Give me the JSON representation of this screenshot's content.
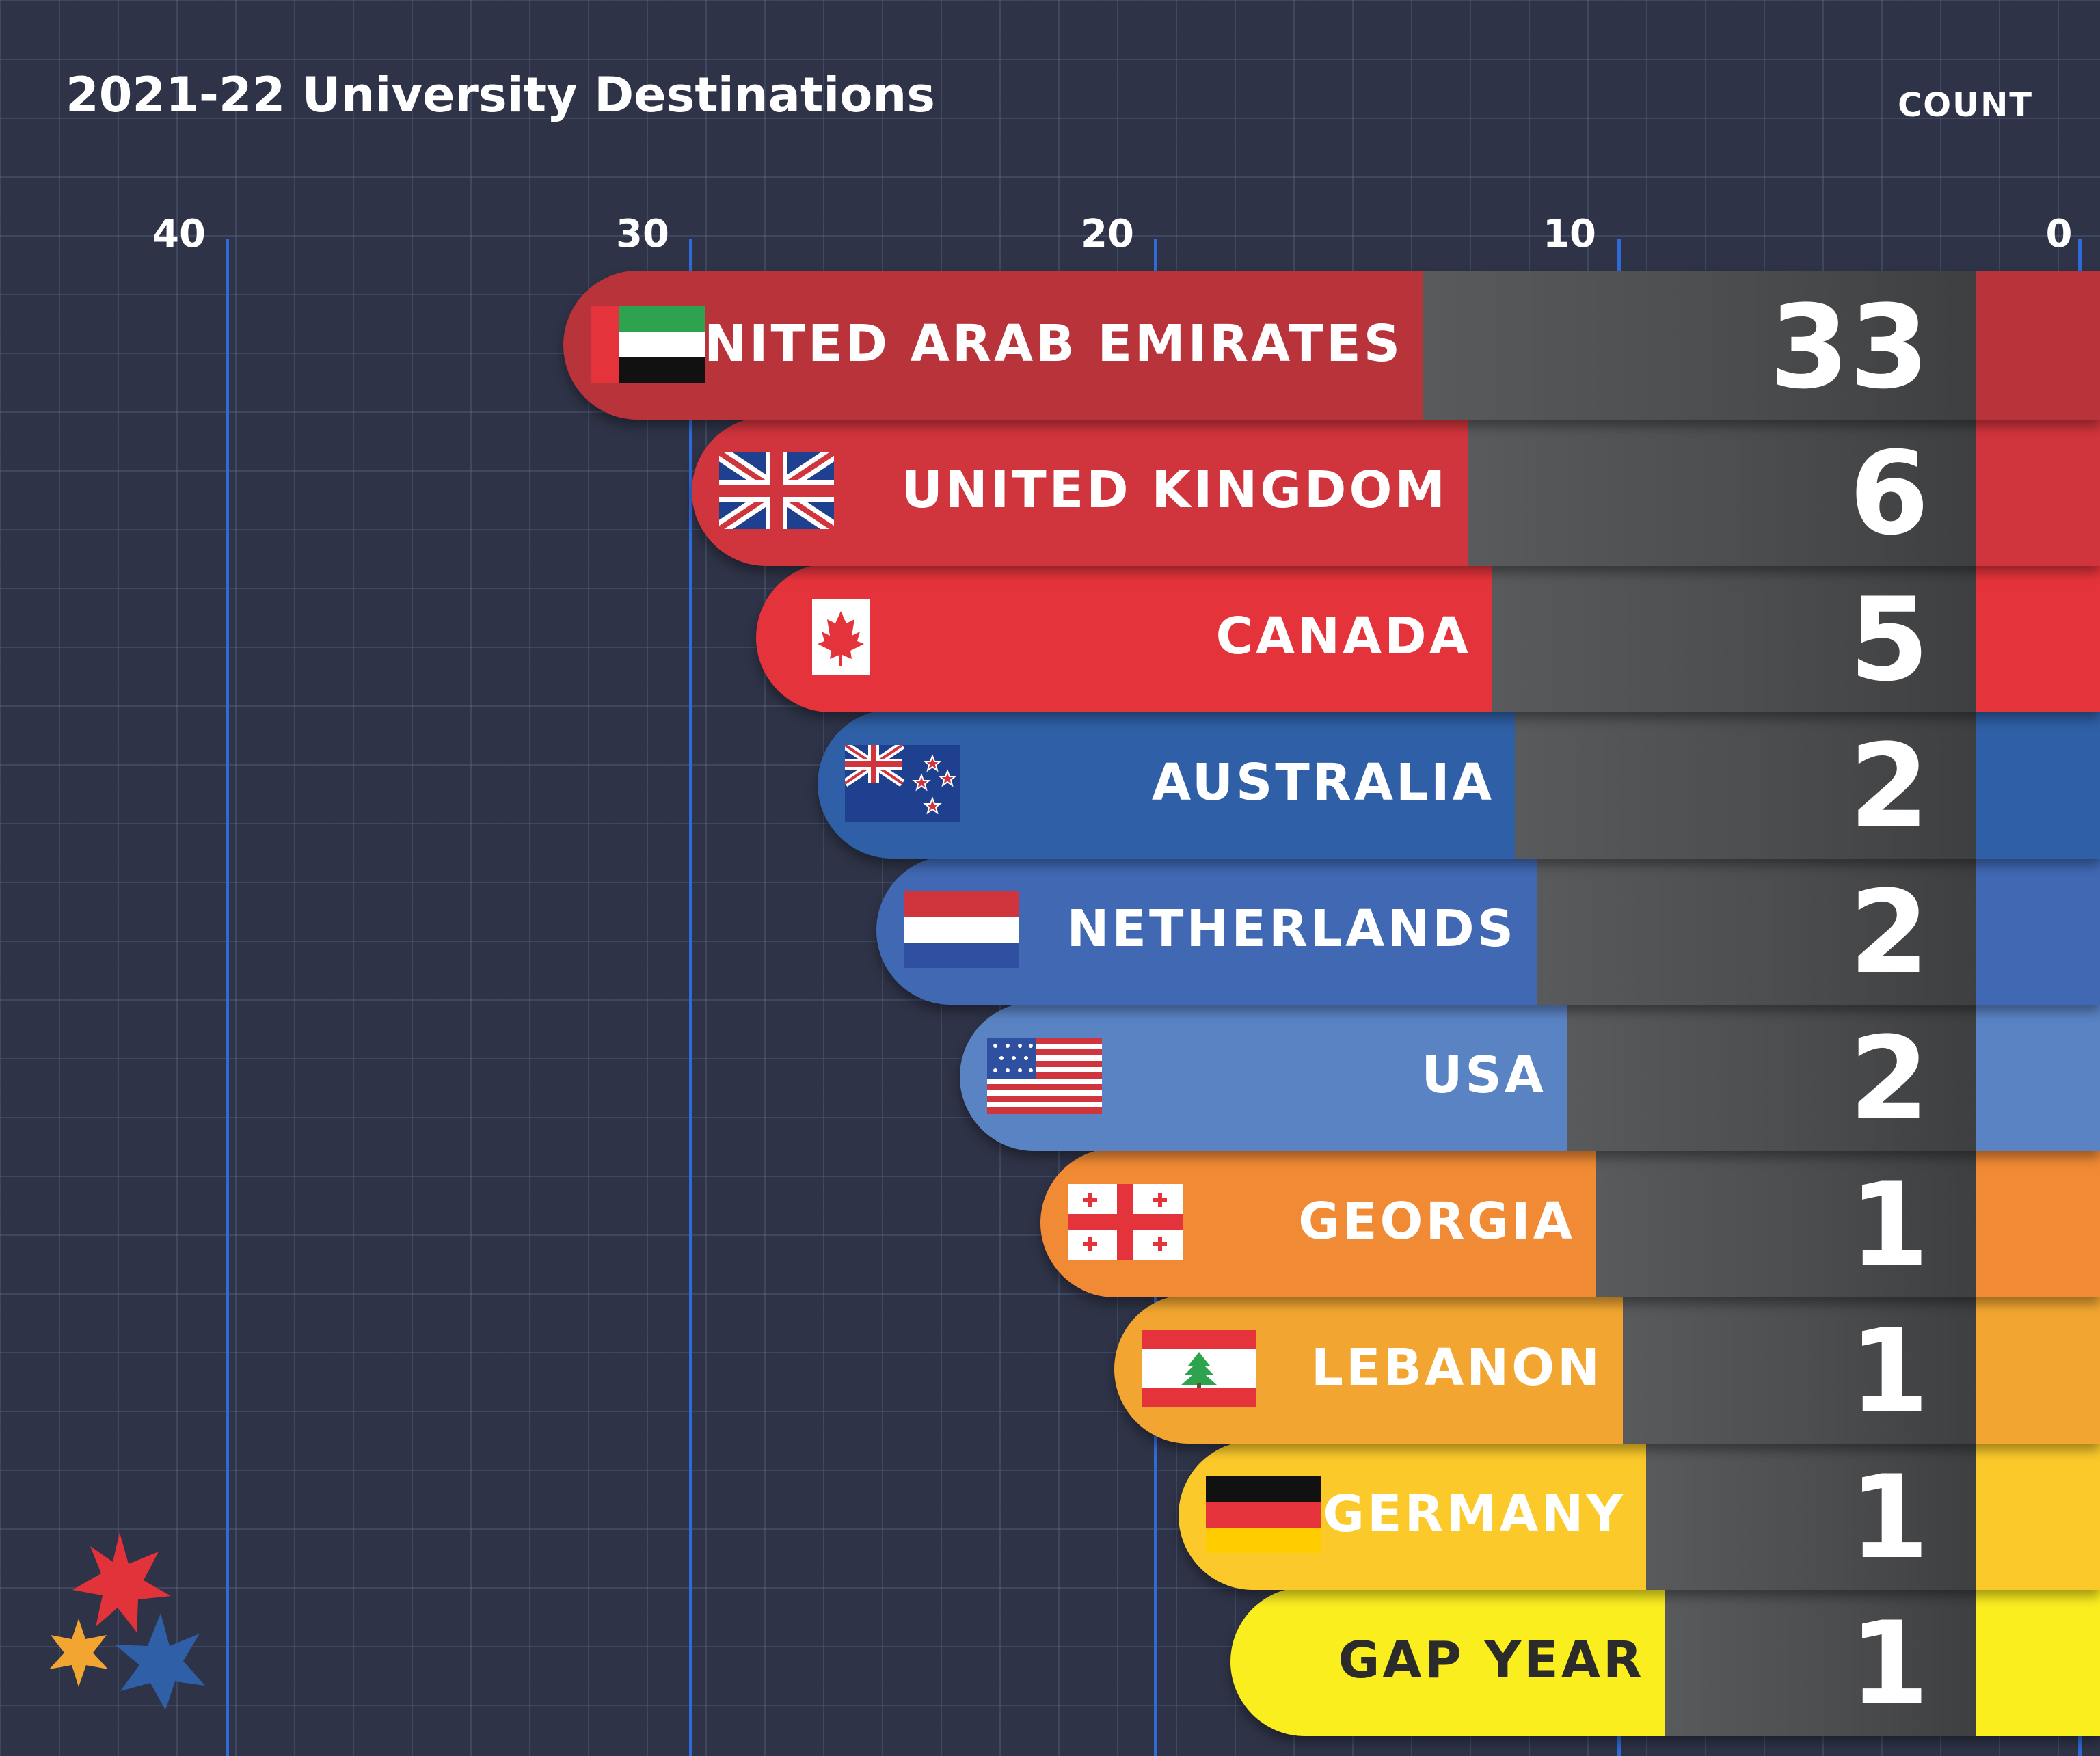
{
  "chart_data": {
    "type": "bar",
    "orientation": "horizontal",
    "title": "2021-22 University Destinations",
    "value_label": "COUNT",
    "ticks": [
      "40",
      "30",
      "20",
      "10",
      "0"
    ],
    "categories": [
      "UNITED ARAB EMIRATES",
      "UNITED KINGDOM",
      "CANADA",
      "AUSTRALIA",
      "NETHERLANDS",
      "USA",
      "GEORGIA",
      "LEBANON",
      "GERMANY",
      "GAP YEAR"
    ],
    "values": [
      33,
      6,
      5,
      2,
      2,
      2,
      1,
      1,
      1,
      1
    ],
    "value_labels": [
      "33",
      "6",
      "5",
      "2",
      "2",
      "2",
      "1",
      "1",
      "1",
      "1"
    ],
    "flags": [
      "uae-flag-icon",
      "uk-flag-icon",
      "canada-flag-icon",
      "new-zealand-flag-icon",
      "netherlands-flag-icon",
      "usa-flag-icon",
      "georgia-flag-icon",
      "lebanon-flag-icon",
      "germany-flag-icon",
      ""
    ],
    "colors": [
      "#b8333a",
      "#d0343c",
      "#e5333b",
      "#2f5fa6",
      "#4068b3",
      "#5a83c4",
      "#f08a34",
      "#f2a631",
      "#fbc92a",
      "#fbee1f"
    ],
    "grid": true
  }
}
